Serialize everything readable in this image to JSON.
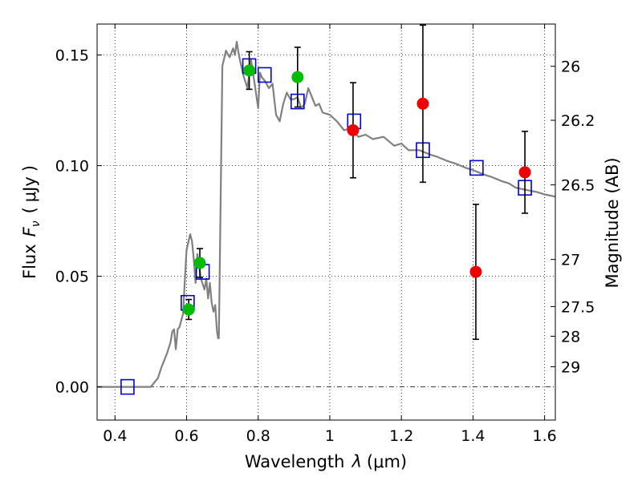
{
  "chart_data": {
    "type": "scatter",
    "xlabel": "Wavelength",
    "xlabel_symbol": "λ",
    "xlabel_unit": "μm",
    "ylabel": "Flux",
    "ylabel_symbol": "F",
    "ylabel_subscript": "ν",
    "ylabel_unit": "μJy",
    "ylabel_right": "Magnitude (AB)",
    "xlim": [
      0.35,
      1.63
    ],
    "ylim": [
      -0.015,
      0.164
    ],
    "grid": true,
    "legend": "none",
    "x_ticks": [
      {
        "value": 0.4,
        "label": "0.4"
      },
      {
        "value": 0.6,
        "label": "0.6"
      },
      {
        "value": 0.8,
        "label": "0.8"
      },
      {
        "value": 1.0,
        "label": "1"
      },
      {
        "value": 1.2,
        "label": "1.2"
      },
      {
        "value": 1.4,
        "label": "1.4"
      },
      {
        "value": 1.6,
        "label": "1.6"
      }
    ],
    "y_ticks": [
      {
        "value": 0.0,
        "label": "0.00"
      },
      {
        "value": 0.05,
        "label": "0.05"
      },
      {
        "value": 0.1,
        "label": "0.10"
      },
      {
        "value": 0.15,
        "label": "0.15"
      }
    ],
    "mag_ticks": [
      {
        "flux": 0.1449,
        "label": "26"
      },
      {
        "flux": 0.1205,
        "label": "26.2"
      },
      {
        "flux": 0.0913,
        "label": "26.5"
      },
      {
        "flux": 0.0576,
        "label": "27"
      },
      {
        "flux": 0.0363,
        "label": "27.5"
      },
      {
        "flux": 0.0229,
        "label": "28"
      },
      {
        "flux": 0.0091,
        "label": "29"
      }
    ],
    "series": [
      {
        "kind": "line",
        "color": "#808080",
        "x": [
          0.35,
          0.5,
          0.52,
          0.53,
          0.545,
          0.555,
          0.56,
          0.565,
          0.57,
          0.575,
          0.58,
          0.59,
          0.595,
          0.6,
          0.61,
          0.615,
          0.62,
          0.625,
          0.63,
          0.64,
          0.65,
          0.655,
          0.66,
          0.665,
          0.67,
          0.675,
          0.68,
          0.685,
          0.688,
          0.69,
          0.695,
          0.7,
          0.71,
          0.72,
          0.73,
          0.735,
          0.74,
          0.745,
          0.75,
          0.76,
          0.77,
          0.78,
          0.79,
          0.8,
          0.805,
          0.81,
          0.82,
          0.83,
          0.84,
          0.85,
          0.86,
          0.87,
          0.88,
          0.89,
          0.9,
          0.91,
          0.92,
          0.93,
          0.94,
          0.95,
          0.96,
          0.97,
          0.98,
          1.0,
          1.02,
          1.04,
          1.06,
          1.08,
          1.1,
          1.12,
          1.15,
          1.18,
          1.2,
          1.22,
          1.25,
          1.28,
          1.3,
          1.33,
          1.35,
          1.38,
          1.4,
          1.43,
          1.45,
          1.48,
          1.5,
          1.52,
          1.55,
          1.58,
          1.6,
          1.63
        ],
        "y": [
          0.0,
          0.0,
          0.004,
          0.009,
          0.015,
          0.02,
          0.025,
          0.026,
          0.017,
          0.026,
          0.027,
          0.033,
          0.048,
          0.062,
          0.069,
          0.066,
          0.058,
          0.047,
          0.06,
          0.049,
          0.044,
          0.049,
          0.04,
          0.047,
          0.038,
          0.034,
          0.037,
          0.025,
          0.022,
          0.022,
          0.083,
          0.145,
          0.152,
          0.149,
          0.153,
          0.15,
          0.156,
          0.151,
          0.147,
          0.14,
          0.135,
          0.148,
          0.137,
          0.126,
          0.142,
          0.14,
          0.138,
          0.135,
          0.137,
          0.123,
          0.12,
          0.128,
          0.133,
          0.13,
          0.13,
          0.131,
          0.126,
          0.128,
          0.135,
          0.131,
          0.127,
          0.128,
          0.124,
          0.123,
          0.12,
          0.116,
          0.117,
          0.113,
          0.114,
          0.112,
          0.113,
          0.109,
          0.11,
          0.107,
          0.107,
          0.105,
          0.104,
          0.102,
          0.101,
          0.099,
          0.098,
          0.096,
          0.095,
          0.093,
          0.092,
          0.09,
          0.089,
          0.088,
          0.087,
          0.086
        ]
      },
      {
        "kind": "square",
        "color": "#0000cc",
        "x": [
          0.435,
          0.603,
          0.645,
          0.775,
          0.818,
          0.91,
          1.068,
          1.26,
          1.41,
          1.545
        ],
        "y": [
          0.0,
          0.038,
          0.052,
          0.145,
          0.141,
          0.129,
          0.12,
          0.107,
          0.099,
          0.09
        ]
      },
      {
        "kind": "errorbar",
        "color": "#00bb00",
        "x": [
          0.606,
          0.637,
          0.775,
          0.91
        ],
        "y": [
          0.035,
          0.056,
          0.143,
          0.14
        ],
        "err": [
          0.0045,
          0.0065,
          0.0085,
          0.0135
        ]
      },
      {
        "kind": "errorbar",
        "color": "#ee0000",
        "x": [
          1.065,
          1.26,
          1.408,
          1.545
        ],
        "y": [
          0.116,
          0.128,
          0.052,
          0.097
        ],
        "err": [
          0.0215,
          0.0355,
          0.0305,
          0.0185
        ]
      }
    ]
  }
}
